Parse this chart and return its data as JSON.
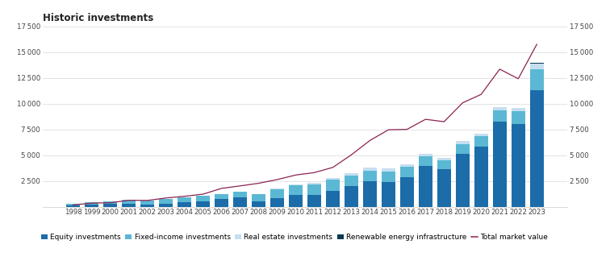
{
  "title": "Historic investments",
  "years": [
    1998,
    1999,
    2000,
    2001,
    2002,
    2003,
    2004,
    2005,
    2006,
    2007,
    2008,
    2009,
    2010,
    2011,
    2012,
    2013,
    2014,
    2015,
    2016,
    2017,
    2018,
    2019,
    2020,
    2021,
    2022,
    2023
  ],
  "equity": [
    152,
    222,
    248,
    269,
    214,
    295,
    411,
    549,
    726,
    906,
    509,
    868,
    1166,
    1111,
    1542,
    2040,
    2446,
    2418,
    2900,
    3956,
    3646,
    5111,
    5841,
    8240,
    8046,
    11327
  ],
  "fixed_income": [
    143,
    221,
    303,
    376,
    419,
    444,
    467,
    481,
    520,
    583,
    716,
    831,
    881,
    1024,
    1075,
    1009,
    1052,
    1026,
    1002,
    942,
    861,
    945,
    985,
    1091,
    1224,
    2003
  ],
  "real_estate": [
    0,
    0,
    0,
    0,
    0,
    0,
    0,
    0,
    0,
    0,
    0,
    58,
    115,
    161,
    195,
    228,
    278,
    247,
    248,
    264,
    265,
    315,
    289,
    341,
    309,
    596
  ],
  "renewable": [
    0,
    0,
    0,
    0,
    0,
    0,
    0,
    0,
    0,
    0,
    0,
    0,
    0,
    0,
    0,
    0,
    0,
    0,
    0,
    0,
    0,
    0,
    0,
    0,
    27,
    78
  ],
  "total_market": [
    172,
    347,
    386,
    619,
    609,
    845,
    1011,
    1219,
    1782,
    2018,
    2275,
    2633,
    3077,
    3312,
    3816,
    5038,
    6431,
    7471,
    7510,
    8488,
    8256,
    10088,
    10908,
    13356,
    12429,
    15765
  ],
  "color_equity": "#1b6ca8",
  "color_fixed": "#5bb8d4",
  "color_realestate": "#c5dff0",
  "color_renewable": "#0a3a52",
  "color_line": "#8b2252",
  "ylim": [
    0,
    17500
  ],
  "yticks": [
    0,
    2500,
    5000,
    7500,
    10000,
    12500,
    15000,
    17500
  ],
  "bg_color": "#ffffff",
  "grid_color": "#d8d8d8",
  "title_fontsize": 8.5,
  "axis_fontsize": 6.2,
  "legend_fontsize": 6.5,
  "legend_labels": [
    "Equity investments",
    "Fixed-income investments",
    "Real estate investments",
    "Renewable energy infrastructure",
    "Total market value"
  ]
}
